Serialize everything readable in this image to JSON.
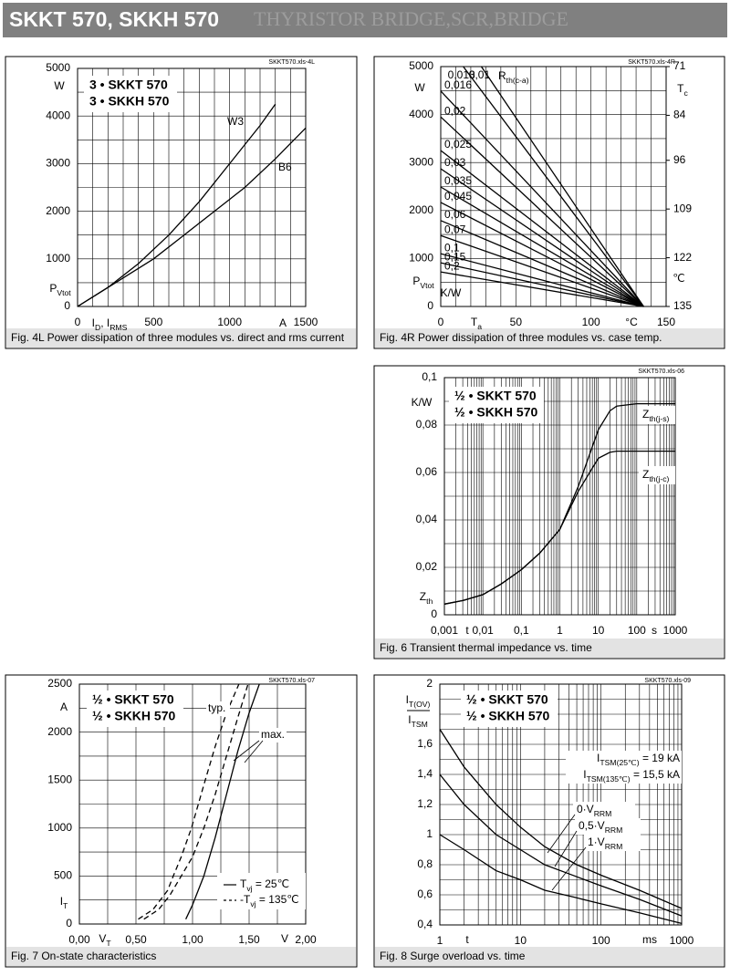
{
  "header": {
    "title": "SKKT 570, SKKH 570",
    "subtitle": "THYRISTOR BRIDGE,SCR,BRIDGE"
  },
  "chart_data": [
    {
      "type": "line",
      "source": "SKKT570.xls-4L",
      "caption": "Fig. 4L Power dissipation of three modules vs. direct and rms current",
      "box": [
        "3 • SKKT 570",
        "3 • SKKH 570"
      ],
      "xlim": [
        0,
        1500
      ],
      "ylim": [
        0,
        5000
      ],
      "xticks": [
        0,
        500,
        1000,
        1500
      ],
      "yticks": [
        0,
        1000,
        2000,
        3000,
        4000,
        5000
      ],
      "xgrid": [
        0,
        100,
        200,
        300,
        400,
        500,
        600,
        700,
        800,
        900,
        1000,
        1100,
        1200,
        1300,
        1400,
        1500
      ],
      "ygrid": [
        0,
        500,
        1000,
        1500,
        2000,
        2500,
        3000,
        3500,
        4000,
        4500,
        5000
      ],
      "labels": [
        "W",
        [
          "P",
          "Vtot"
        ],
        [
          "I",
          "D",
          ", I",
          "RMS"
        ],
        "A"
      ],
      "series": [
        {
          "name": "W3",
          "color": "#000000",
          "x": [
            0,
            200,
            400,
            600,
            800,
            1000,
            1200,
            1300
          ],
          "values": [
            0,
            400,
            900,
            1500,
            2200,
            3000,
            3800,
            4250
          ]
        },
        {
          "name": "B6",
          "color": "#000000",
          "x": [
            0,
            300,
            500,
            700,
            900,
            1100,
            1300,
            1500
          ],
          "values": [
            0,
            600,
            1000,
            1500,
            2000,
            2500,
            3100,
            3750
          ]
        }
      ]
    },
    {
      "type": "line",
      "source": "SKKT570.xls-4R",
      "caption": "Fig. 4R Power dissipation of three modules vs. case temp.",
      "xlim": [
        0,
        150
      ],
      "ylim": [
        0,
        5000
      ],
      "y2lim": [
        135,
        71
      ],
      "xticks": [
        0,
        50,
        100,
        150
      ],
      "yticks": [
        0,
        1000,
        2000,
        3000,
        4000,
        5000
      ],
      "y2ticks": [
        71,
        84,
        96,
        109,
        122,
        135
      ],
      "xgrid": [
        0,
        10,
        20,
        30,
        40,
        50,
        60,
        70,
        80,
        90,
        100,
        110,
        120,
        130,
        140,
        150
      ],
      "ygrid": [
        0,
        500,
        1000,
        1500,
        2000,
        2500,
        3000,
        3500,
        4000,
        4500,
        5000
      ],
      "labels": [
        "W",
        [
          "P",
          "Vtot"
        ],
        "K/W",
        [
          "R",
          "th(c-a)"
        ],
        [
          "T",
          "a"
        ],
        "°C",
        [
          "T",
          "c"
        ],
        "℃"
      ],
      "series": [
        {
          "name": "0,01",
          "color": "#000000",
          "x": [
            27,
            135
          ],
          "values": [
            5000,
            0
          ]
        },
        {
          "name": "0,013",
          "color": "#000000",
          "x": [
            15,
            135
          ],
          "values": [
            5000,
            0
          ]
        },
        {
          "name": "0,016",
          "color": "#000000",
          "x": [
            0,
            135
          ],
          "values": [
            4490,
            0
          ]
        },
        {
          "name": "0,02",
          "color": "#000000",
          "x": [
            0,
            135
          ],
          "values": [
            3950,
            0
          ]
        },
        {
          "name": "0,025",
          "color": "#000000",
          "x": [
            0,
            135
          ],
          "values": [
            3250,
            0
          ]
        },
        {
          "name": "0,03",
          "color": "#000000",
          "x": [
            0,
            135
          ],
          "values": [
            2870,
            0
          ]
        },
        {
          "name": "0,035",
          "color": "#000000",
          "x": [
            0,
            135
          ],
          "values": [
            2490,
            0
          ]
        },
        {
          "name": "0,045",
          "color": "#000000",
          "x": [
            0,
            135
          ],
          "values": [
            2170,
            0
          ]
        },
        {
          "name": "0,06",
          "color": "#000000",
          "x": [
            0,
            135
          ],
          "values": [
            1790,
            0
          ]
        },
        {
          "name": "0,07",
          "color": "#000000",
          "x": [
            0,
            135
          ],
          "values": [
            1480,
            0
          ]
        },
        {
          "name": "0,1",
          "color": "#000000",
          "x": [
            0,
            135
          ],
          "values": [
            1100,
            0
          ]
        },
        {
          "name": "0,15",
          "color": "#000000",
          "x": [
            0,
            135
          ],
          "values": [
            910,
            0
          ]
        },
        {
          "name": "0,2",
          "color": "#000000",
          "x": [
            0,
            135
          ],
          "values": [
            720,
            0
          ]
        }
      ]
    },
    {
      "type": "line",
      "source": "SKKT570.xls-06",
      "caption": "Fig. 6 Transient thermal impedance vs. time",
      "box": [
        "½ • SKKT 570",
        "½ • SKKH 570"
      ],
      "xlog": true,
      "xlim": [
        0.001,
        1000
      ],
      "ylim": [
        0,
        0.1
      ],
      "xticks": [
        {
          "value": 0.001,
          "label": "0,001"
        },
        {
          "value": 0.01,
          "label": "0,01"
        },
        {
          "value": 0.1,
          "label": "0,1"
        },
        1,
        10,
        100,
        1000
      ],
      "yticks": [
        0,
        {
          "value": 0.02,
          "label": "0,02"
        },
        {
          "value": 0.04,
          "label": "0,04"
        },
        {
          "value": 0.06,
          "label": "0,06"
        },
        {
          "value": 0.08,
          "label": "0,08"
        },
        {
          "value": 0.1,
          "label": "0,1"
        }
      ],
      "xgrid": [
        0.001,
        0.002,
        0.003,
        0.004,
        0.005,
        0.006,
        0.007,
        0.008,
        0.009,
        0.01,
        0.02,
        0.03,
        0.04,
        0.05,
        0.06,
        0.07,
        0.08,
        0.09,
        0.1,
        0.2,
        0.3,
        0.4,
        0.5,
        0.6,
        0.7,
        0.8,
        0.9,
        1,
        2,
        3,
        4,
        5,
        6,
        7,
        8,
        9,
        10,
        20,
        30,
        40,
        50,
        60,
        70,
        80,
        90,
        100,
        200,
        300,
        400,
        500,
        600,
        700,
        800,
        900,
        1000
      ],
      "ygrid": [
        0,
        0.01,
        0.02,
        0.03,
        0.04,
        0.05,
        0.06,
        0.07,
        0.08,
        0.09,
        0.1
      ],
      "labels": [
        "K/W",
        [
          "Z",
          "th"
        ],
        "t",
        "s"
      ],
      "series": [
        {
          "name": [
            "Z",
            "th(j-s)"
          ],
          "color": "#000000",
          "x": [
            0.001,
            0.003,
            0.01,
            0.03,
            0.1,
            0.3,
            1,
            3,
            10,
            20,
            30,
            100,
            1000
          ],
          "values": [
            0.0045,
            0.006,
            0.0085,
            0.013,
            0.019,
            0.026,
            0.036,
            0.054,
            0.078,
            0.086,
            0.088,
            0.089,
            0.089
          ]
        },
        {
          "name": [
            "Z",
            "th(j-c)"
          ],
          "color": "#000000",
          "x": [
            0.001,
            0.003,
            0.01,
            0.03,
            0.1,
            0.3,
            1,
            3,
            10,
            20,
            30,
            100,
            1000
          ],
          "values": [
            0.0045,
            0.006,
            0.0085,
            0.013,
            0.019,
            0.026,
            0.036,
            0.052,
            0.066,
            0.0685,
            0.069,
            0.069,
            0.069
          ]
        }
      ]
    },
    {
      "type": "line",
      "source": "SKKT570.xls-07",
      "caption": "Fig. 7 On-state characteristics",
      "box": [
        "½ • SKKT 570",
        "½ • SKKH 570"
      ],
      "xlim": [
        0,
        2
      ],
      "ylim": [
        0,
        2500
      ],
      "xticks": [
        {
          "value": 0,
          "label": "0,00"
        },
        {
          "value": 0.5,
          "label": "0,50"
        },
        {
          "value": 1,
          "label": "1,00"
        },
        {
          "value": 1.5,
          "label": "1,50"
        },
        {
          "value": 2,
          "label": "2,00"
        }
      ],
      "yticks": [
        0,
        500,
        1000,
        1500,
        2000,
        2500
      ],
      "xgrid": [
        0,
        0.25,
        0.5,
        0.75,
        1,
        1.25,
        1.5,
        1.75,
        2
      ],
      "ygrid": [
        0,
        250,
        500,
        750,
        1000,
        1250,
        1500,
        1750,
        2000,
        2250,
        2500
      ],
      "labels": [
        "A",
        [
          "I",
          "T"
        ],
        [
          "V",
          "T"
        ],
        "V",
        "typ.",
        "max."
      ],
      "legend": [
        [
          "T",
          "vj",
          " = 25℃"
        ],
        [
          "-T",
          "vj",
          " = 135℃"
        ]
      ],
      "series": [
        {
          "color": "#000000",
          "dash": true,
          "x": [
            0.52,
            0.65,
            0.78,
            0.83,
            0.9,
            0.99,
            1.1,
            1.2,
            1.3,
            1.41
          ],
          "values": [
            50,
            150,
            350,
            500,
            700,
            1000,
            1450,
            1850,
            2200,
            2500
          ]
        },
        {
          "color": "#000000",
          "dash": true,
          "x": [
            0.57,
            0.7,
            0.8,
            0.9,
            1.0,
            1.1,
            1.2,
            1.3,
            1.4,
            1.49
          ],
          "values": [
            50,
            150,
            300,
            500,
            700,
            1000,
            1350,
            1750,
            2150,
            2500
          ]
        },
        {
          "color": "#000000",
          "x": [
            0.94,
            1.0,
            1.1,
            1.2,
            1.3,
            1.4,
            1.5,
            1.59
          ],
          "values": [
            50,
            200,
            500,
            900,
            1350,
            1800,
            2200,
            2500
          ]
        }
      ]
    },
    {
      "type": "line",
      "source": "SKKT570.xls-09",
      "caption": "Fig. 8 Surge overload vs. time",
      "box": [
        "½ • SKKT 570",
        "½ • SKKH 570"
      ],
      "xlog": true,
      "xlim": [
        1,
        1000
      ],
      "ylim": [
        0.4,
        2
      ],
      "xticks": [
        1,
        10,
        100,
        1000
      ],
      "yticks": [
        {
          "value": 0.4,
          "label": "0,4"
        },
        {
          "value": 0.6,
          "label": "0,6"
        },
        {
          "value": 0.8,
          "label": "0,8"
        },
        1,
        {
          "value": 1.2,
          "label": "1,2"
        },
        {
          "value": 1.4,
          "label": "1,4"
        },
        {
          "value": 1.6,
          "label": "1,6"
        },
        2
      ],
      "xgrid": [
        1,
        2,
        3,
        4,
        5,
        6,
        7,
        8,
        9,
        10,
        20,
        30,
        40,
        50,
        60,
        70,
        80,
        90,
        100,
        200,
        300,
        400,
        500,
        600,
        700,
        800,
        900,
        1000
      ],
      "ygrid": [
        0.4,
        0.5,
        0.6,
        0.7,
        0.8,
        0.9,
        1,
        1.1,
        1.2,
        1.3,
        1.4,
        1.5,
        1.6,
        1.7,
        1.8,
        1.9,
        2
      ],
      "labels": [
        [
          "I",
          "T(OV)"
        ],
        [
          "I",
          "TSM"
        ],
        "t",
        "ms",
        [
          "I",
          "TSM(25℃)",
          " = 19 kA"
        ],
        [
          "I",
          "TSM(135℃)",
          " = 15,5 kA"
        ]
      ],
      "series": [
        {
          "name": [
            "0·V",
            "RRM"
          ],
          "color": "#000000",
          "x": [
            1,
            2,
            5,
            10,
            20,
            50,
            100,
            300,
            1000
          ],
          "values": [
            1.7,
            1.45,
            1.2,
            1.05,
            0.92,
            0.8,
            0.73,
            0.63,
            0.51
          ]
        },
        {
          "name": [
            "0,5·V",
            "RRM"
          ],
          "color": "#000000",
          "x": [
            1,
            2,
            5,
            10,
            20,
            50,
            100,
            300,
            1000
          ],
          "values": [
            1.4,
            1.2,
            1.0,
            0.9,
            0.8,
            0.72,
            0.66,
            0.57,
            0.46
          ]
        },
        {
          "name": [
            "1·V",
            "RRM"
          ],
          "color": "#000000",
          "x": [
            1,
            2,
            5,
            10,
            20,
            50,
            100,
            300,
            1000
          ],
          "values": [
            1.0,
            0.9,
            0.76,
            0.7,
            0.63,
            0.58,
            0.54,
            0.48,
            0.41
          ]
        }
      ]
    }
  ]
}
